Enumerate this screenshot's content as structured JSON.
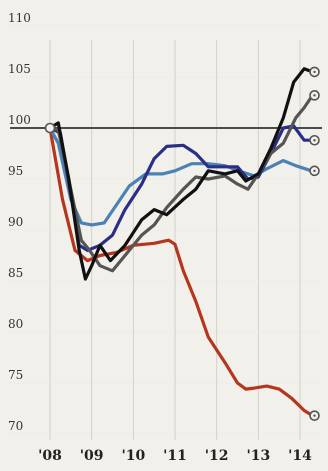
{
  "chart_data": {
    "type": "line",
    "title": "",
    "xlabel": "",
    "ylabel": "",
    "ylim": [
      70,
      110
    ],
    "xlim": [
      2008,
      2014.3
    ],
    "yticks": [
      70,
      75,
      80,
      85,
      90,
      95,
      100,
      105,
      110
    ],
    "xticks": [
      {
        "x": 2008,
        "label": "'08"
      },
      {
        "x": 2009,
        "label": "'09"
      },
      {
        "x": 2010,
        "label": "'10"
      },
      {
        "x": 2011,
        "label": "'11"
      },
      {
        "x": 2012,
        "label": "'12"
      },
      {
        "x": 2013,
        "label": "'13"
      },
      {
        "x": 2014,
        "label": "'14"
      }
    ],
    "reference_line": 100,
    "grid": "vertical",
    "series": [
      {
        "color": "#b5361c",
        "points": [
          [
            2008,
            100
          ],
          [
            2008.3,
            93
          ],
          [
            2008.6,
            88
          ],
          [
            2008.9,
            87
          ],
          [
            2009.2,
            87.5
          ],
          [
            2009.6,
            87.8
          ],
          [
            2010,
            88.5
          ],
          [
            2010.5,
            88.7
          ],
          [
            2010.85,
            89
          ],
          [
            2011,
            88.6
          ],
          [
            2011.2,
            86
          ],
          [
            2011.5,
            83
          ],
          [
            2011.8,
            79.5
          ],
          [
            2012.2,
            77
          ],
          [
            2012.5,
            75
          ],
          [
            2012.7,
            74.4
          ],
          [
            2012.9,
            74.5
          ],
          [
            2013.2,
            74.7
          ],
          [
            2013.5,
            74.4
          ],
          [
            2013.8,
            73.5
          ],
          [
            2014.1,
            72.3
          ],
          [
            2014.3,
            71.8
          ]
        ]
      },
      {
        "color": "#4a82b4",
        "points": [
          [
            2008,
            100
          ],
          [
            2008.2,
            98.5
          ],
          [
            2008.5,
            93
          ],
          [
            2008.75,
            90.7
          ],
          [
            2009,
            90.5
          ],
          [
            2009.3,
            90.7
          ],
          [
            2009.6,
            92.5
          ],
          [
            2009.9,
            94.3
          ],
          [
            2010.3,
            95.5
          ],
          [
            2010.7,
            95.5
          ],
          [
            2011,
            95.8
          ],
          [
            2011.4,
            96.5
          ],
          [
            2011.8,
            96.5
          ],
          [
            2012.2,
            96.3
          ],
          [
            2012.6,
            95.7
          ],
          [
            2012.9,
            95.3
          ],
          [
            2013.2,
            96
          ],
          [
            2013.6,
            96.8
          ],
          [
            2013.9,
            96.3
          ],
          [
            2014.2,
            95.9
          ],
          [
            2014.3,
            95.8
          ]
        ]
      },
      {
        "color": "#2a2e86",
        "points": [
          [
            2008,
            100
          ],
          [
            2008.25,
            99.5
          ],
          [
            2008.5,
            93.5
          ],
          [
            2008.7,
            88.5
          ],
          [
            2008.9,
            88
          ],
          [
            2009.2,
            88.5
          ],
          [
            2009.5,
            89.5
          ],
          [
            2009.8,
            92
          ],
          [
            2010.2,
            94.5
          ],
          [
            2010.5,
            97
          ],
          [
            2010.8,
            98.2
          ],
          [
            2011.2,
            98.3
          ],
          [
            2011.5,
            97.5
          ],
          [
            2011.8,
            96.2
          ],
          [
            2012.2,
            96.2
          ],
          [
            2012.5,
            96.2
          ],
          [
            2012.75,
            95
          ],
          [
            2013,
            95.2
          ],
          [
            2013.3,
            97.5
          ],
          [
            2013.6,
            100
          ],
          [
            2013.85,
            100.2
          ],
          [
            2014.1,
            98.8
          ],
          [
            2014.3,
            98.8
          ]
        ]
      },
      {
        "color": "#555555",
        "points": [
          [
            2008,
            100
          ],
          [
            2008.2,
            99.8
          ],
          [
            2008.5,
            94
          ],
          [
            2008.75,
            89
          ],
          [
            2008.95,
            88
          ],
          [
            2009.2,
            86.5
          ],
          [
            2009.5,
            86
          ],
          [
            2009.8,
            87.5
          ],
          [
            2010.2,
            89.5
          ],
          [
            2010.5,
            90.5
          ],
          [
            2010.8,
            92.2
          ],
          [
            2011.2,
            94
          ],
          [
            2011.5,
            95.2
          ],
          [
            2011.8,
            95
          ],
          [
            2012.2,
            95.3
          ],
          [
            2012.5,
            94.5
          ],
          [
            2012.75,
            94
          ],
          [
            2013,
            95.5
          ],
          [
            2013.3,
            97.5
          ],
          [
            2013.6,
            98.5
          ],
          [
            2013.9,
            101
          ],
          [
            2014.1,
            102
          ],
          [
            2014.3,
            103.2
          ]
        ]
      },
      {
        "color": "#111111",
        "points": [
          [
            2008,
            100
          ],
          [
            2008.2,
            100.5
          ],
          [
            2008.45,
            95
          ],
          [
            2008.7,
            88
          ],
          [
            2008.85,
            85.2
          ],
          [
            2009,
            86.5
          ],
          [
            2009.2,
            88.5
          ],
          [
            2009.45,
            87
          ],
          [
            2009.8,
            88.5
          ],
          [
            2010.2,
            91
          ],
          [
            2010.5,
            92
          ],
          [
            2010.8,
            91.5
          ],
          [
            2011.2,
            93
          ],
          [
            2011.5,
            94
          ],
          [
            2011.8,
            95.8
          ],
          [
            2012.2,
            95.5
          ],
          [
            2012.5,
            95.8
          ],
          [
            2012.7,
            94.8
          ],
          [
            2013,
            95.5
          ],
          [
            2013.3,
            98
          ],
          [
            2013.6,
            101
          ],
          [
            2013.85,
            104.5
          ],
          [
            2014.1,
            105.8
          ],
          [
            2014.3,
            105.5
          ]
        ]
      }
    ]
  }
}
